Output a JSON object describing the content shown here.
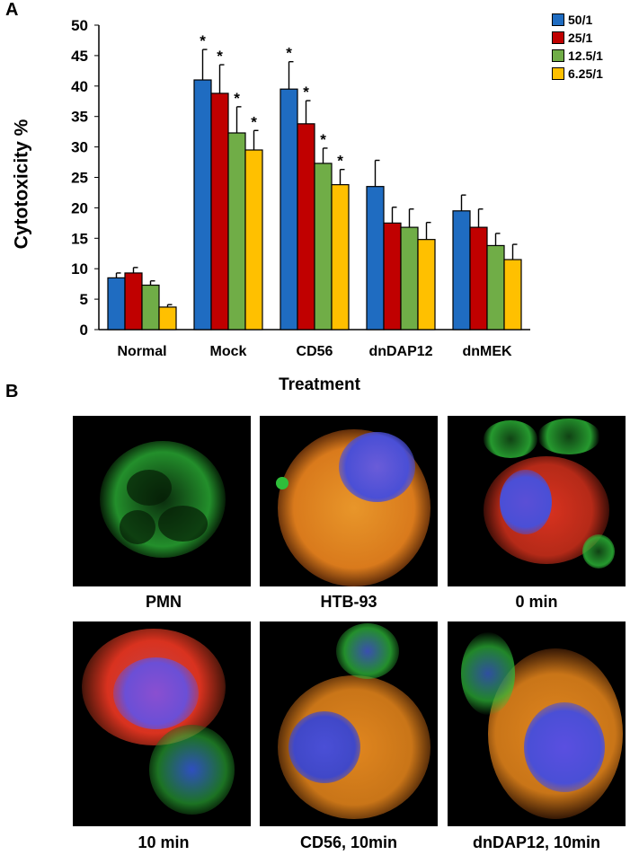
{
  "panels": {
    "a_label": "A",
    "b_label": "B"
  },
  "chart_data": {
    "type": "bar",
    "title": "",
    "xlabel": "Treatment",
    "ylabel": "Cytotoxicity %",
    "ylim": [
      0,
      50
    ],
    "yticks": [
      0,
      5,
      10,
      15,
      20,
      25,
      30,
      35,
      40,
      45,
      50
    ],
    "grid": false,
    "legend_position": "top-right",
    "categories": [
      "Normal",
      "Mock",
      "CD56",
      "dnDAP12",
      "dnMEK"
    ],
    "significance_marker": "*",
    "series": [
      {
        "name": "50/1",
        "color": "#1f6cc1",
        "values": [
          8.5,
          41.0,
          39.5,
          23.5,
          19.5
        ],
        "errors": [
          0.8,
          5.0,
          4.5,
          4.3,
          2.6
        ],
        "significant": [
          false,
          true,
          true,
          false,
          false
        ]
      },
      {
        "name": "25/1",
        "color": "#c00000",
        "values": [
          9.3,
          38.8,
          33.8,
          17.5,
          16.8
        ],
        "errors": [
          0.9,
          4.7,
          3.8,
          2.6,
          3.0
        ],
        "significant": [
          false,
          true,
          true,
          false,
          false
        ]
      },
      {
        "name": "12.5/1",
        "color": "#70ad47",
        "values": [
          7.3,
          32.3,
          27.3,
          16.8,
          13.8
        ],
        "errors": [
          0.7,
          4.3,
          2.5,
          3.0,
          2.0
        ],
        "significant": [
          false,
          true,
          true,
          false,
          false
        ]
      },
      {
        "name": "6.25/1",
        "color": "#ffc000",
        "values": [
          3.7,
          29.5,
          23.8,
          14.8,
          11.5
        ],
        "errors": [
          0.4,
          3.2,
          2.5,
          2.8,
          2.5
        ],
        "significant": [
          false,
          true,
          true,
          false,
          false
        ]
      }
    ]
  },
  "micrographs": [
    {
      "caption": "PMN"
    },
    {
      "caption": "HTB-93"
    },
    {
      "caption": "0 min"
    },
    {
      "caption": "10 min"
    },
    {
      "caption": "CD56, 10min"
    },
    {
      "caption": "dnDAP12, 10min"
    }
  ],
  "colors": {
    "green_stain": "#2fbf3a",
    "blue_nucleus": "#4a4fd6",
    "red_stain": "#d9321f",
    "orange_stain": "#e0861f"
  }
}
